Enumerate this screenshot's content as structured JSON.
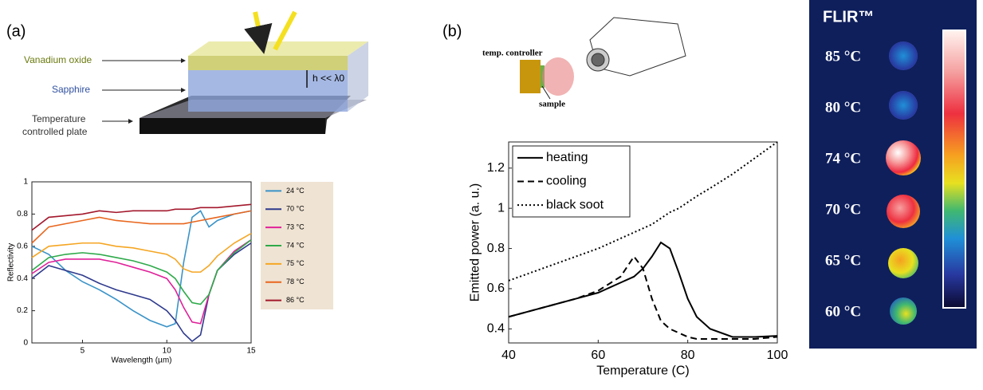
{
  "labels": {
    "panel_a": "(a)",
    "panel_b": "(b)",
    "vo2": "Vanadium oxide",
    "sapphire": "Sapphire",
    "plate": [
      "Temperature",
      "controlled plate"
    ],
    "thickness": "h << λ0",
    "controller": "temp. controller",
    "sample": "sample",
    "flir": "FLIR™",
    "thermal": [
      "85 °C",
      "80 °C",
      "74 °C",
      "70 °C",
      "65 °C",
      "60 °C"
    ]
  },
  "chart_data": [
    {
      "type": "line",
      "xlabel": "Wavelength (µm)",
      "ylabel": "Reflectivity",
      "x": [
        2,
        3,
        4,
        5,
        6,
        7,
        8,
        9,
        10,
        10.5,
        11,
        11.5,
        12,
        12.5,
        13,
        14,
        15
      ],
      "xlim": [
        2,
        15
      ],
      "xticks": [
        5,
        10,
        15
      ],
      "ylim": [
        0,
        1
      ],
      "yticks": [
        0,
        0.2,
        0.4,
        0.6,
        0.8,
        1
      ],
      "legend": "right-outside",
      "series": [
        {
          "name": "24 °C",
          "color": "#3a93c8",
          "values": [
            0.6,
            0.55,
            0.45,
            0.38,
            0.33,
            0.27,
            0.2,
            0.14,
            0.1,
            0.12,
            0.5,
            0.78,
            0.82,
            0.72,
            0.76,
            0.8,
            0.82
          ]
        },
        {
          "name": "70 °C",
          "color": "#2e3a8c",
          "values": [
            0.4,
            0.48,
            0.45,
            0.42,
            0.37,
            0.33,
            0.3,
            0.27,
            0.2,
            0.14,
            0.06,
            0.01,
            0.05,
            0.3,
            0.45,
            0.55,
            0.62
          ]
        },
        {
          "name": "73 °C",
          "color": "#e0219a",
          "values": [
            0.43,
            0.5,
            0.52,
            0.52,
            0.52,
            0.5,
            0.47,
            0.44,
            0.4,
            0.33,
            0.22,
            0.13,
            0.12,
            0.3,
            0.45,
            0.57,
            0.64
          ]
        },
        {
          "name": "74 °C",
          "color": "#2eaa4a",
          "values": [
            0.45,
            0.53,
            0.55,
            0.56,
            0.55,
            0.53,
            0.51,
            0.48,
            0.44,
            0.4,
            0.32,
            0.25,
            0.24,
            0.3,
            0.45,
            0.56,
            0.64
          ]
        },
        {
          "name": "75 °C",
          "color": "#f5a623",
          "values": [
            0.53,
            0.6,
            0.61,
            0.62,
            0.62,
            0.6,
            0.59,
            0.57,
            0.55,
            0.52,
            0.46,
            0.44,
            0.44,
            0.48,
            0.54,
            0.62,
            0.68
          ]
        },
        {
          "name": "78 °C",
          "color": "#e8661e",
          "values": [
            0.62,
            0.72,
            0.74,
            0.76,
            0.78,
            0.76,
            0.75,
            0.74,
            0.74,
            0.74,
            0.74,
            0.75,
            0.76,
            0.77,
            0.78,
            0.8,
            0.82
          ]
        },
        {
          "name": "86 °C",
          "color": "#a3182c",
          "values": [
            0.7,
            0.78,
            0.79,
            0.8,
            0.82,
            0.81,
            0.82,
            0.82,
            0.82,
            0.83,
            0.83,
            0.83,
            0.84,
            0.84,
            0.84,
            0.85,
            0.86
          ]
        }
      ]
    },
    {
      "type": "line",
      "xlabel": "Temperature (C)",
      "ylabel": "Emitted power (a. u.)",
      "x": [
        40,
        45,
        50,
        55,
        60,
        65,
        68,
        70,
        72,
        74,
        76,
        78,
        80,
        82,
        85,
        90,
        95,
        100
      ],
      "xlim": [
        40,
        100
      ],
      "xticks": [
        40,
        60,
        80,
        100
      ],
      "ylim": [
        0.33,
        1.33
      ],
      "yticks": [
        0.4,
        0.6,
        0.8,
        1,
        1.2
      ],
      "legend": "upper-left",
      "series": [
        {
          "name": "heating",
          "color": "#000000",
          "style": "solid",
          "values": [
            0.46,
            0.49,
            0.52,
            0.55,
            0.58,
            0.63,
            0.66,
            0.7,
            0.76,
            0.83,
            0.8,
            0.68,
            0.55,
            0.46,
            0.4,
            0.36,
            0.36,
            0.365
          ]
        },
        {
          "name": "cooling",
          "color": "#000000",
          "style": "dashed",
          "values": [
            0.46,
            0.49,
            0.52,
            0.55,
            0.59,
            0.66,
            0.76,
            0.7,
            0.55,
            0.44,
            0.4,
            0.38,
            0.36,
            0.35,
            0.35,
            0.35,
            0.35,
            0.36
          ]
        },
        {
          "name": "black soot",
          "color": "#000000",
          "style": "dotted",
          "values": [
            0.64,
            0.68,
            0.72,
            0.76,
            0.8,
            0.85,
            0.88,
            0.9,
            0.92,
            0.95,
            0.98,
            1.0,
            1.03,
            1.06,
            1.1,
            1.17,
            1.25,
            1.33
          ]
        }
      ]
    }
  ]
}
